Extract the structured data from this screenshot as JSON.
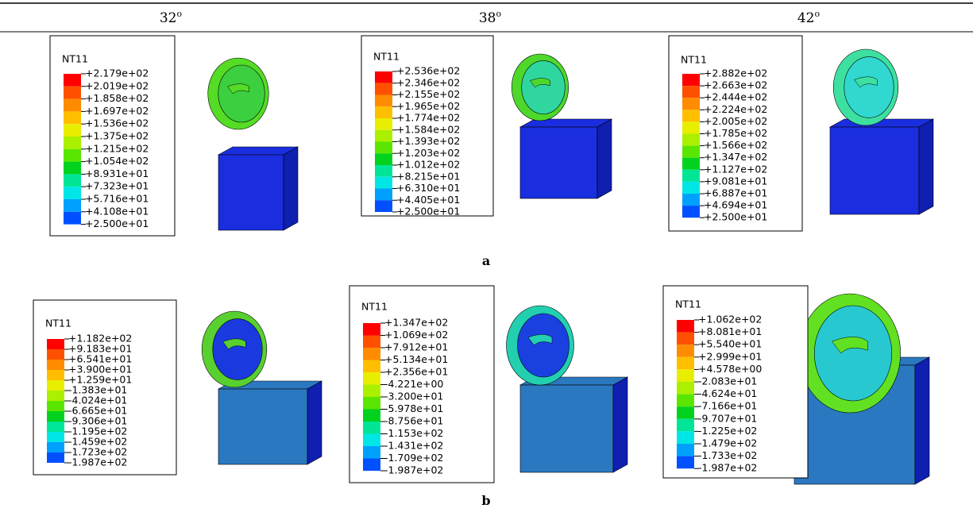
{
  "header": {
    "columns": [
      {
        "angle": "32",
        "unit": "o"
      },
      {
        "angle": "38",
        "unit": "o"
      },
      {
        "angle": "42",
        "unit": "o"
      }
    ]
  },
  "rows": [
    {
      "label": "a",
      "panels": [
        {
          "legend_title": "NT11",
          "scale": [
            "+2.179e+02",
            "+2.019e+02",
            "+1.858e+02",
            "+1.697e+02",
            "+1.536e+02",
            "+1.375e+02",
            "+1.215e+02",
            "+1.054e+02",
            "+8.931e+01",
            "+7.323e+01",
            "+5.716e+01",
            "+4.108e+01",
            "+2.500e+01"
          ]
        },
        {
          "legend_title": "NT11",
          "scale": [
            "+2.536e+02",
            "+2.346e+02",
            "+2.155e+02",
            "+1.965e+02",
            "+1.774e+02",
            "+1.584e+02",
            "+1.393e+02",
            "+1.203e+02",
            "+1.012e+02",
            "+8.215e+01",
            "+6.310e+01",
            "+4.405e+01",
            "+2.500e+01"
          ]
        },
        {
          "legend_title": "NT11",
          "scale": [
            "+2.882e+02",
            "+2.663e+02",
            "+2.444e+02",
            "+2.224e+02",
            "+2.005e+02",
            "+1.785e+02",
            "+1.566e+02",
            "+1.347e+02",
            "+1.127e+02",
            "+9.081e+01",
            "+6.887e+01",
            "+4.694e+01",
            "+2.500e+01"
          ]
        }
      ]
    },
    {
      "label": "b",
      "panels": [
        {
          "legend_title": "NT11",
          "scale": [
            "+1.182e+02",
            "+9.183e+01",
            "+6.541e+01",
            "+3.900e+01",
            "+1.259e+01",
            "-1.383e+01",
            "-4.024e+01",
            "-6.665e+01",
            "-9.306e+01",
            "-1.195e+02",
            "-1.459e+02",
            "-1.723e+02",
            "-1.987e+02"
          ]
        },
        {
          "legend_title": "NT11",
          "scale": [
            "+1.347e+02",
            "+1.069e+02",
            "+7.912e+01",
            "+5.134e+01",
            "+2.356e+01",
            "-4.221e+00",
            "-3.200e+01",
            "-5.978e+01",
            "-8.756e+01",
            "-1.153e+02",
            "-1.431e+02",
            "-1.709e+02",
            "-1.987e+02"
          ]
        },
        {
          "legend_title": "NT11",
          "scale": [
            "+1.062e+02",
            "+8.081e+01",
            "+5.540e+01",
            "+2.999e+01",
            "+4.578e+00",
            "-2.083e+01",
            "-4.624e+01",
            "-7.166e+01",
            "-9.707e+01",
            "-1.225e+02",
            "-1.479e+02",
            "-1.733e+02",
            "-1.987e+02"
          ]
        }
      ]
    }
  ]
}
